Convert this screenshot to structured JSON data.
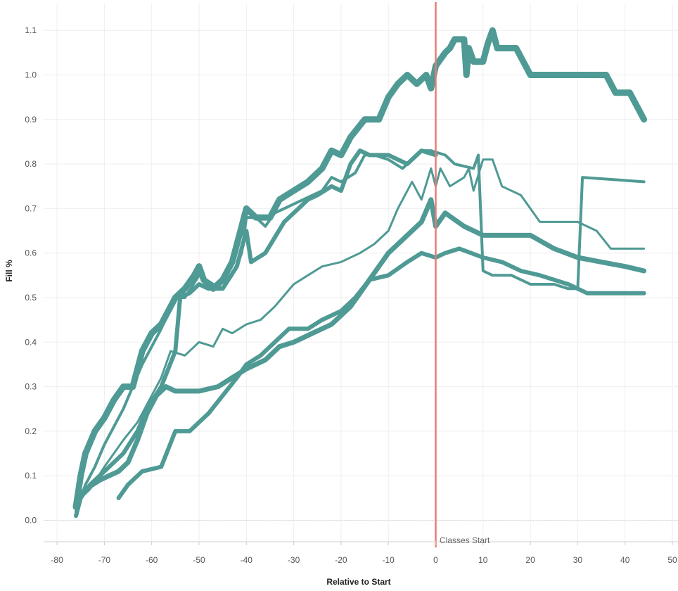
{
  "chart_data": {
    "type": "line",
    "xlabel": "Relative to Start",
    "ylabel": "Fill %",
    "xlim": [
      -82,
      52
    ],
    "ylim": [
      -0.05,
      1.15
    ],
    "xticks": [
      -80,
      -70,
      -60,
      -50,
      -40,
      -30,
      -20,
      -10,
      0,
      10,
      20,
      30,
      40,
      50
    ],
    "yticks": [
      0.0,
      0.1,
      0.2,
      0.3,
      0.4,
      0.5,
      0.6,
      0.7,
      0.8,
      0.9,
      1.0,
      1.1
    ],
    "ytick_labels": [
      "0.0",
      "0.1",
      "0.2",
      "0.3",
      "0.4",
      "0.5",
      "0.6",
      "0.7",
      "0.8",
      "0.9",
      "1.0",
      "1.1"
    ],
    "grid": true,
    "line_color": "#4f9a94",
    "reference_line": {
      "x": 0,
      "label": "Classes Start",
      "color": "#e87b77"
    },
    "series": [
      {
        "width": 9,
        "points": [
          [
            -76,
            0.03
          ],
          [
            -75,
            0.1
          ],
          [
            -74,
            0.15
          ],
          [
            -72,
            0.2
          ],
          [
            -70,
            0.23
          ],
          [
            -68,
            0.27
          ],
          [
            -66,
            0.3
          ],
          [
            -64,
            0.3
          ],
          [
            -62,
            0.38
          ],
          [
            -60,
            0.42
          ],
          [
            -58,
            0.44
          ],
          [
            -56,
            0.48
          ],
          [
            -55,
            0.5
          ],
          [
            -53,
            0.52
          ],
          [
            -51,
            0.55
          ],
          [
            -50,
            0.57
          ],
          [
            -49,
            0.54
          ],
          [
            -47,
            0.52
          ],
          [
            -45,
            0.54
          ],
          [
            -43,
            0.58
          ],
          [
            -41,
            0.66
          ],
          [
            -40,
            0.7
          ],
          [
            -38,
            0.68
          ],
          [
            -35,
            0.68
          ],
          [
            -33,
            0.72
          ],
          [
            -30,
            0.74
          ],
          [
            -27,
            0.76
          ],
          [
            -24,
            0.79
          ],
          [
            -22,
            0.83
          ],
          [
            -20,
            0.82
          ],
          [
            -18,
            0.86
          ],
          [
            -15,
            0.9
          ],
          [
            -12,
            0.9
          ],
          [
            -10,
            0.95
          ],
          [
            -8,
            0.98
          ],
          [
            -6,
            1.0
          ],
          [
            -4,
            0.98
          ],
          [
            -2,
            1.0
          ],
          [
            -1,
            0.97
          ],
          [
            0,
            1.02
          ],
          [
            2,
            1.05
          ],
          [
            3,
            1.06
          ],
          [
            4,
            1.08
          ],
          [
            6,
            1.08
          ],
          [
            6.5,
            1.0
          ],
          [
            7,
            1.06
          ],
          [
            8,
            1.03
          ],
          [
            10,
            1.03
          ],
          [
            11,
            1.07
          ],
          [
            12,
            1.1
          ],
          [
            13,
            1.06
          ],
          [
            17,
            1.06
          ],
          [
            20,
            1.0
          ],
          [
            36,
            1.0
          ],
          [
            38,
            0.96
          ],
          [
            41,
            0.96
          ],
          [
            43,
            0.92
          ],
          [
            44,
            0.9
          ]
        ]
      },
      {
        "width": 4,
        "points": [
          [
            -76,
            0.02
          ],
          [
            -74,
            0.08
          ],
          [
            -72,
            0.12
          ],
          [
            -70,
            0.17
          ],
          [
            -66,
            0.25
          ],
          [
            -62,
            0.35
          ],
          [
            -58,
            0.43
          ],
          [
            -55,
            0.5
          ],
          [
            -53,
            0.5
          ],
          [
            -50,
            0.55
          ],
          [
            -47,
            0.53
          ],
          [
            -45,
            0.52
          ],
          [
            -43,
            0.55
          ],
          [
            -41,
            0.6
          ],
          [
            -40,
            0.68
          ],
          [
            -38,
            0.68
          ],
          [
            -36,
            0.66
          ],
          [
            -34,
            0.69
          ],
          [
            -32,
            0.7
          ],
          [
            -28,
            0.72
          ],
          [
            -24,
            0.74
          ],
          [
            -22,
            0.77
          ],
          [
            -20,
            0.76
          ],
          [
            -17,
            0.78
          ],
          [
            -15,
            0.82
          ],
          [
            -13,
            0.82
          ],
          [
            -10,
            0.81
          ],
          [
            -7,
            0.79
          ],
          [
            -3,
            0.83
          ],
          [
            -1,
            0.83
          ],
          [
            2,
            0.82
          ],
          [
            4,
            0.8
          ],
          [
            8,
            0.79
          ],
          [
            9,
            0.82
          ],
          [
            10,
            0.56
          ],
          [
            12,
            0.55
          ],
          [
            16,
            0.55
          ],
          [
            20,
            0.53
          ],
          [
            25,
            0.53
          ],
          [
            28,
            0.52
          ],
          [
            30,
            0.52
          ],
          [
            31,
            0.77
          ],
          [
            44,
            0.76
          ]
        ]
      },
      {
        "width": 6,
        "points": [
          [
            -76,
            0.01
          ],
          [
            -75,
            0.05
          ],
          [
            -73,
            0.08
          ],
          [
            -70,
            0.11
          ],
          [
            -66,
            0.15
          ],
          [
            -63,
            0.2
          ],
          [
            -61,
            0.25
          ],
          [
            -58,
            0.3
          ],
          [
            -55,
            0.38
          ],
          [
            -54,
            0.5
          ],
          [
            -52,
            0.51
          ],
          [
            -50,
            0.53
          ],
          [
            -48,
            0.52
          ],
          [
            -45,
            0.52
          ],
          [
            -42,
            0.57
          ],
          [
            -40,
            0.65
          ],
          [
            -39,
            0.58
          ],
          [
            -36,
            0.6
          ],
          [
            -32,
            0.67
          ],
          [
            -29,
            0.7
          ],
          [
            -27,
            0.72
          ],
          [
            -25,
            0.73
          ],
          [
            -22,
            0.75
          ],
          [
            -20,
            0.74
          ],
          [
            -18,
            0.8
          ],
          [
            -16,
            0.83
          ],
          [
            -14,
            0.82
          ],
          [
            -10,
            0.82
          ],
          [
            -6,
            0.8
          ],
          [
            -3,
            0.83
          ],
          [
            0,
            0.82
          ]
        ]
      },
      {
        "width": 3,
        "points": [
          [
            -76,
            0.04
          ],
          [
            -73,
            0.07
          ],
          [
            -70,
            0.12
          ],
          [
            -66,
            0.18
          ],
          [
            -63,
            0.22
          ],
          [
            -60,
            0.28
          ],
          [
            -58,
            0.32
          ],
          [
            -56,
            0.38
          ],
          [
            -53,
            0.37
          ],
          [
            -50,
            0.4
          ],
          [
            -47,
            0.39
          ],
          [
            -45,
            0.43
          ],
          [
            -43,
            0.42
          ],
          [
            -40,
            0.44
          ],
          [
            -37,
            0.45
          ],
          [
            -34,
            0.48
          ],
          [
            -30,
            0.53
          ],
          [
            -27,
            0.55
          ],
          [
            -24,
            0.57
          ],
          [
            -20,
            0.58
          ],
          [
            -16,
            0.6
          ],
          [
            -13,
            0.62
          ],
          [
            -10,
            0.65
          ],
          [
            -8,
            0.7
          ],
          [
            -5,
            0.76
          ],
          [
            -3,
            0.72
          ],
          [
            -1,
            0.79
          ],
          [
            0,
            0.75
          ],
          [
            1,
            0.79
          ],
          [
            3,
            0.75
          ],
          [
            6,
            0.77
          ],
          [
            7,
            0.79
          ],
          [
            8,
            0.74
          ],
          [
            10,
            0.81
          ],
          [
            12,
            0.81
          ],
          [
            14,
            0.75
          ],
          [
            18,
            0.73
          ],
          [
            20,
            0.7
          ],
          [
            22,
            0.67
          ],
          [
            26,
            0.67
          ],
          [
            30,
            0.67
          ],
          [
            34,
            0.65
          ],
          [
            37,
            0.61
          ],
          [
            44,
            0.61
          ]
        ]
      },
      {
        "width": 7,
        "points": [
          [
            -76,
            0.04
          ],
          [
            -74,
            0.07
          ],
          [
            -71,
            0.09
          ],
          [
            -69,
            0.1
          ],
          [
            -67,
            0.11
          ],
          [
            -65,
            0.13
          ],
          [
            -63,
            0.18
          ],
          [
            -61,
            0.24
          ],
          [
            -59,
            0.28
          ],
          [
            -57,
            0.3
          ],
          [
            -55,
            0.29
          ],
          [
            -50,
            0.29
          ],
          [
            -46,
            0.3
          ],
          [
            -43,
            0.32
          ],
          [
            -40,
            0.34
          ],
          [
            -36,
            0.36
          ],
          [
            -33,
            0.39
          ],
          [
            -30,
            0.4
          ],
          [
            -26,
            0.42
          ],
          [
            -22,
            0.44
          ],
          [
            -18,
            0.48
          ],
          [
            -14,
            0.54
          ],
          [
            -10,
            0.6
          ],
          [
            -6,
            0.64
          ],
          [
            -3,
            0.67
          ],
          [
            -1,
            0.72
          ],
          [
            0,
            0.66
          ],
          [
            2,
            0.69
          ],
          [
            6,
            0.66
          ],
          [
            10,
            0.64
          ],
          [
            15,
            0.64
          ],
          [
            20,
            0.64
          ],
          [
            25,
            0.61
          ],
          [
            30,
            0.59
          ],
          [
            35,
            0.58
          ],
          [
            40,
            0.57
          ],
          [
            44,
            0.56
          ]
        ]
      },
      {
        "width": 6,
        "points": [
          [
            -67,
            0.05
          ],
          [
            -65,
            0.08
          ],
          [
            -62,
            0.11
          ],
          [
            -58,
            0.12
          ],
          [
            -55,
            0.2
          ],
          [
            -52,
            0.2
          ],
          [
            -50,
            0.22
          ],
          [
            -48,
            0.24
          ],
          [
            -45,
            0.28
          ],
          [
            -42,
            0.32
          ],
          [
            -40,
            0.35
          ],
          [
            -37,
            0.37
          ],
          [
            -34,
            0.4
          ],
          [
            -31,
            0.43
          ],
          [
            -27,
            0.43
          ],
          [
            -24,
            0.45
          ],
          [
            -20,
            0.47
          ],
          [
            -17,
            0.5
          ],
          [
            -14,
            0.54
          ],
          [
            -10,
            0.55
          ],
          [
            -6,
            0.58
          ],
          [
            -3,
            0.6
          ],
          [
            0,
            0.59
          ],
          [
            2,
            0.6
          ],
          [
            5,
            0.61
          ],
          [
            10,
            0.59
          ],
          [
            14,
            0.58
          ],
          [
            18,
            0.56
          ],
          [
            22,
            0.55
          ],
          [
            28,
            0.53
          ],
          [
            32,
            0.51
          ],
          [
            36,
            0.51
          ],
          [
            44,
            0.51
          ]
        ]
      }
    ]
  }
}
